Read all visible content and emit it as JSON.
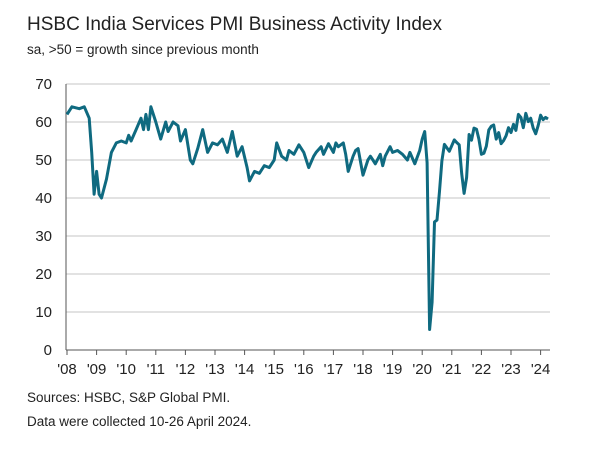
{
  "chart_data": {
    "type": "line",
    "title": "HSBC India Services PMI Business Activity Index",
    "subtitle": "sa, >50 = growth since previous month",
    "ylim": [
      0,
      70
    ],
    "yticks": [
      0,
      10,
      20,
      30,
      40,
      50,
      60,
      70
    ],
    "xticks": [
      "'08",
      "'09",
      "'10",
      "'11",
      "'12",
      "'13",
      "'14",
      "'15",
      "'16",
      "'17",
      "'18",
      "'19",
      "'20",
      "'21",
      "'22",
      "'23",
      "'24"
    ],
    "grid": true,
    "line_color": "#0f6a80",
    "series": [
      {
        "x": [
          "2008-01",
          "2008-03",
          "2008-06",
          "2008-08",
          "2008-10",
          "2008-11",
          "2008-12",
          "2009-01",
          "2009-02",
          "2009-03",
          "2009-05",
          "2009-07",
          "2009-09",
          "2009-11",
          "2010-01",
          "2010-02",
          "2010-03",
          "2010-05",
          "2010-07",
          "2010-08",
          "2010-09",
          "2010-10",
          "2010-11",
          "2011-01",
          "2011-03",
          "2011-05",
          "2011-06",
          "2011-08",
          "2011-10",
          "2011-11",
          "2012-01",
          "2012-03",
          "2012-04",
          "2012-06",
          "2012-08",
          "2012-10",
          "2012-12",
          "2013-02",
          "2013-04",
          "2013-06",
          "2013-08",
          "2013-10",
          "2013-12",
          "2014-02",
          "2014-03",
          "2014-05",
          "2014-07",
          "2014-09",
          "2014-11",
          "2015-01",
          "2015-02",
          "2015-04",
          "2015-06",
          "2015-07",
          "2015-09",
          "2015-11",
          "2016-01",
          "2016-03",
          "2016-05",
          "2016-06",
          "2016-08",
          "2016-09",
          "2016-11",
          "2017-01",
          "2017-02",
          "2017-03",
          "2017-05",
          "2017-06",
          "2017-07",
          "2017-09",
          "2017-10",
          "2017-11",
          "2018-01",
          "2018-03",
          "2018-04",
          "2018-05",
          "2018-06",
          "2018-08",
          "2018-09",
          "2018-10",
          "2018-12",
          "2019-01",
          "2019-03",
          "2019-05",
          "2019-07",
          "2019-08",
          "2019-10",
          "2019-12",
          "2020-01",
          "2020-02",
          "2020-03",
          "2020-04",
          "2020-05",
          "2020-06",
          "2020-07",
          "2020-08",
          "2020-09",
          "2020-10",
          "2020-12",
          "2021-02",
          "2021-03",
          "2021-04",
          "2021-05",
          "2021-06",
          "2021-07",
          "2021-08",
          "2021-09",
          "2021-10",
          "2021-11",
          "2021-12",
          "2022-01",
          "2022-02",
          "2022-03",
          "2022-04",
          "2022-05",
          "2022-06",
          "2022-07",
          "2022-08",
          "2022-09",
          "2022-10",
          "2022-11",
          "2022-12",
          "2023-01",
          "2023-02",
          "2023-03",
          "2023-04",
          "2023-05",
          "2023-06",
          "2023-07",
          "2023-08",
          "2023-09",
          "2023-10",
          "2023-11",
          "2023-12",
          "2024-01",
          "2024-02",
          "2024-03",
          "2024-04"
        ],
        "y": [
          62,
          64,
          63.5,
          64,
          61,
          52,
          41,
          47,
          41,
          40,
          45,
          52,
          54.5,
          55,
          54.5,
          56.5,
          55,
          58,
          61,
          58,
          62,
          58,
          64,
          60,
          55.5,
          60,
          57.5,
          60,
          59,
          55,
          58,
          50,
          49,
          53,
          58,
          52,
          54.5,
          54,
          55.5,
          52,
          57.5,
          51,
          53.5,
          48,
          44.5,
          47,
          46.5,
          48.5,
          48,
          50,
          54.5,
          51,
          50,
          52.5,
          51.5,
          54,
          52,
          48,
          51,
          52,
          53.5,
          51.5,
          54.3,
          52,
          54.5,
          53.5,
          54.5,
          51.5,
          47,
          51,
          52.5,
          53,
          46,
          50,
          51,
          50,
          49,
          51.5,
          48.5,
          51,
          53.5,
          52,
          52.5,
          51.5,
          50,
          52,
          49,
          52.5,
          55.5,
          57.5,
          49.3,
          5.4,
          12.6,
          33.7,
          34.2,
          41.8,
          49.8,
          54.1,
          52.3,
          55.3,
          54.6,
          54,
          46.4,
          41.2,
          45.4,
          56.7,
          55.2,
          58.4,
          58.1,
          55.5,
          51.5,
          51.8,
          53.6,
          57.9,
          58.9,
          59.2,
          55.5,
          57.2,
          54.3,
          55.1,
          56.4,
          58.5,
          57.2,
          59.4,
          57.8,
          62,
          61.2,
          58.5,
          62.3,
          60.1,
          61,
          58.4,
          56.9,
          59,
          61.8,
          60.6,
          61.2,
          60.8
        ]
      }
    ]
  },
  "footer": {
    "sources": "Sources: HSBC, S&P Global PMI.",
    "note": "Data were collected 10-26 April 2024."
  }
}
